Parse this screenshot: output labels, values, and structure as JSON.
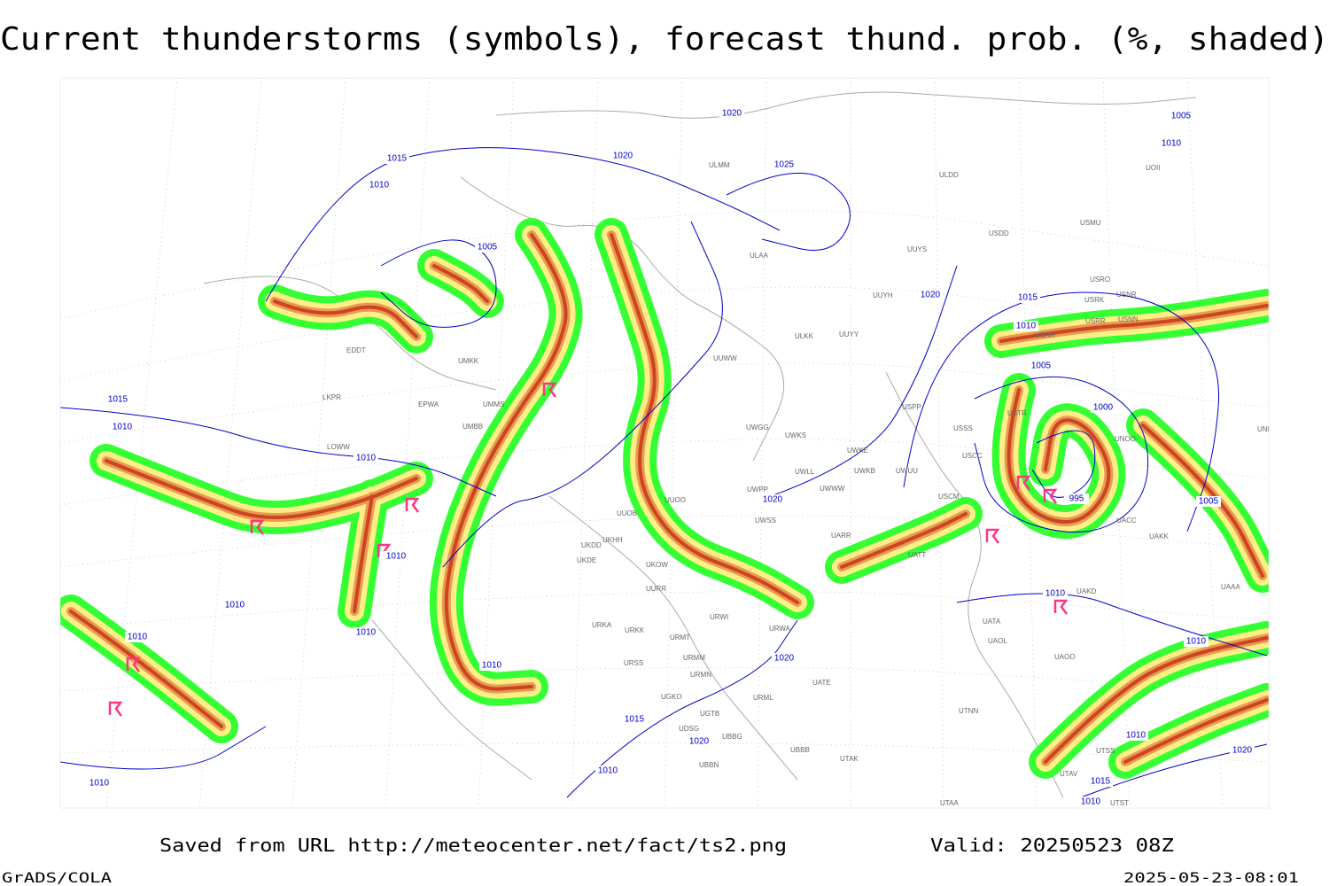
{
  "header": {
    "title": "Current thunderstorms (symbols), forecast thund. prob. (%, shaded)"
  },
  "isobar_labels": [
    1020,
    1015,
    1020,
    1025,
    1010,
    1005,
    1020,
    1015,
    1010,
    1005,
    1000,
    995,
    1005,
    1015,
    1010,
    1010,
    1020,
    1010,
    1010,
    1010,
    1010,
    1010,
    1020,
    1015,
    1020,
    1010,
    1010,
    1010,
    1010,
    1010,
    1020,
    1015,
    1010,
    1005,
    1010
  ],
  "stations": [
    "ULMM",
    "ULDD",
    "UOII",
    "USMU",
    "USDD",
    "ULAA",
    "UUYS",
    "USRO",
    "USRK",
    "USNR",
    "UUYH",
    "USRR",
    "USNN",
    "USHH",
    "ULKK",
    "UUYY",
    "EDDT",
    "UMKK",
    "UUWW",
    "EPWA",
    "LKPR",
    "UMMS",
    "UMBB",
    "USPP",
    "USSS",
    "USTR",
    "UNOO",
    "UNBB",
    "UWGG",
    "UWKS",
    "UWKE",
    "UWKB",
    "UWUU",
    "USCC",
    "UWLL",
    "UWWW",
    "UWPP",
    "USCM",
    "UUOO",
    "UUOB",
    "UWSS",
    "UAKK",
    "UACC",
    "UARR",
    "UKDD",
    "UKHH",
    "UKDE",
    "UKOW",
    "UATT",
    "UURR",
    "UAKD",
    "UATA",
    "UAOL",
    "UAAA",
    "URWI",
    "URKA",
    "URKK",
    "URMT",
    "URWA",
    "UAOO",
    "UATE",
    "URSS",
    "URMM",
    "URMN",
    "UGKO",
    "UGTB",
    "UTNN",
    "URML",
    "UDSG",
    "UBBG",
    "UBBB",
    "UBBN",
    "UTAK",
    "UTAV",
    "UTSS",
    "UTST",
    "UTAA",
    "LOWW"
  ],
  "footer": {
    "source": "Saved from URL http://meteocenter.net/fact/ts2.png",
    "valid": "Valid: 20250523 08Z",
    "software": "GrADS/COLA",
    "timestamp": "2025-05-23-08:01"
  }
}
